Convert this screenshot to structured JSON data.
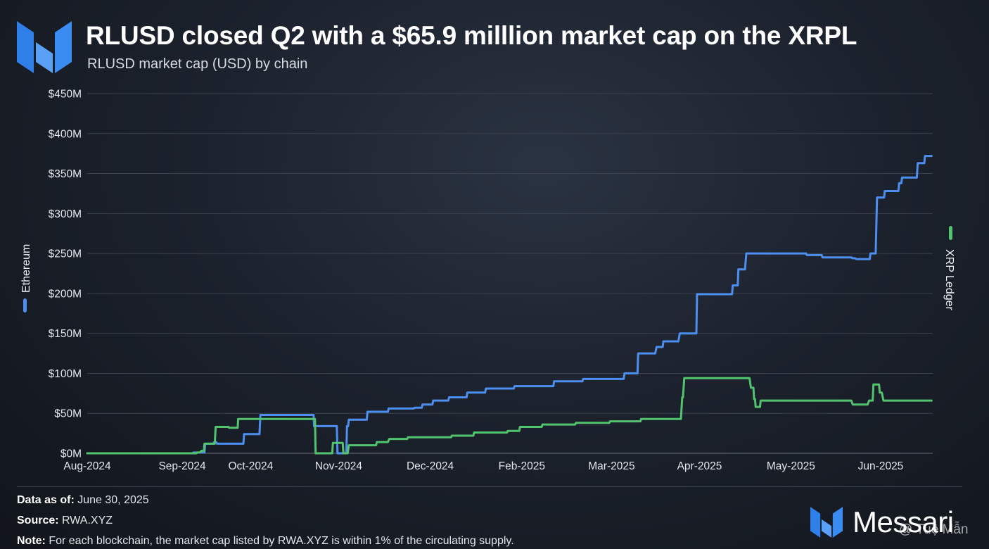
{
  "header": {
    "title": "RLUSD closed Q2 with a $65.9 milllion market cap on the XRPL",
    "subtitle": "RLUSD market cap (USD) by chain"
  },
  "footer": {
    "data_label": "Data as of:",
    "data_value": " June 30, 2025",
    "source_label": "Source:",
    "source_value": " RWA.XYZ",
    "note_label": "Note:",
    "note_value": " For each blockchain, the market cap listed by RWA.XYZ is within 1% of the circulating supply."
  },
  "brand": {
    "name": "Messari",
    "watermark": "@ Tuệ Mẫn"
  },
  "colors": {
    "ethereum": "#4d8ff0",
    "xrpl": "#52c46e",
    "logo": "#3d8ef5"
  },
  "chart_data": {
    "type": "line",
    "title": "RLUSD closed Q2 with a $65.9 milllion market cap on the XRPL",
    "subtitle": "RLUSD market cap (USD) by chain",
    "x_ticks": [
      "Aug-2024",
      "Sep-2024",
      "Oct-2024",
      "Nov-2024",
      "Dec-2024",
      "Feb-2025",
      "Mar-2025",
      "Apr-2025",
      "May-2025",
      "Jun-2025"
    ],
    "x_tick_positions": [
      0,
      41.8,
      71.9,
      110.6,
      150.9,
      191.2,
      230.7,
      269.4,
      309.6,
      349.1
    ],
    "x_range": [
      0,
      372
    ],
    "y_ticks": [
      "$0M",
      "$50M",
      "$100M",
      "$150M",
      "$200M",
      "$250M",
      "$300M",
      "$350M",
      "$400M",
      "$450M"
    ],
    "ylim": [
      0,
      450
    ],
    "y_unit": "USD millions",
    "grid": true,
    "left_axis_label": "Ethereum",
    "right_axis_label": "XRP Ledger",
    "series": [
      {
        "name": "Ethereum",
        "color": "#4d8ff0",
        "x": [
          0,
          46.4,
          46.7,
          51.6,
          51.9,
          55.3,
          55.9,
          56.8,
          57.1,
          68.7,
          69.0,
          75.8,
          76.2,
          79.9,
          80.1,
          89.3,
          89.6,
          99.6,
          99.8,
          102.1,
          102.4,
          109.8,
          110.1,
          114.0,
          114.3,
          114.8,
          115.1,
          123.0,
          123.3,
          132.3,
          132.6,
          143.7,
          144.0,
          147.2,
          147.5,
          151.9,
          152.2,
          158.9,
          159.2,
          166.9,
          167.2,
          175.1,
          175.4,
          187.7,
          188.0,
          194.9,
          195.2,
          205.1,
          205.4,
          217.9,
          218.2,
          236.0,
          236.4,
          242.1,
          242.4,
          249.9,
          250.5,
          253.2,
          253.5,
          260.1,
          260.7,
          268.0,
          268.3,
          283.7,
          284.0,
          286.2,
          286.5,
          289.4,
          290.0,
          316.3,
          316.6,
          323.2,
          323.5,
          336.3,
          336.6,
          337.8,
          338.4,
          340.4,
          341.0,
          344.3,
          344.6,
          346.9,
          347.5,
          350.6,
          350.9,
          356.9,
          357.2,
          358.2,
          358.5,
          365.0,
          365.4,
          368.3,
          368.6,
          371.5
        ],
        "values": [
          0,
          0,
          1,
          1,
          12,
          12,
          14,
          14,
          12,
          12,
          24,
          24,
          48,
          48,
          48,
          48,
          48,
          48,
          34,
          34,
          34,
          34,
          0,
          0,
          34,
          34,
          42,
          42,
          52,
          52,
          56,
          56,
          57,
          57,
          61,
          61,
          66,
          66,
          70,
          70,
          76,
          76,
          81,
          81,
          84,
          84,
          84,
          84,
          90,
          90,
          93,
          93,
          100,
          100,
          125,
          125,
          133,
          133,
          140,
          140,
          150,
          150,
          199,
          199,
          210,
          210,
          230,
          230,
          250,
          250,
          248,
          248,
          245,
          245,
          244,
          244,
          243,
          243,
          243,
          243,
          250,
          250,
          320,
          320,
          328,
          328,
          338,
          338,
          345,
          345,
          363,
          363,
          372,
          372
        ]
      },
      {
        "name": "XRP Ledger",
        "color": "#52c46e",
        "x": [
          0,
          46.1,
          46.4,
          48.0,
          48.6,
          49.6,
          50.2,
          51.3,
          51.6,
          56.1,
          56.5,
          62.1,
          62.4,
          66.2,
          66.4,
          89.7,
          90.3,
          100.2,
          100.5,
          102.8,
          103.1,
          107.8,
          108.1,
          112.4,
          112.7,
          114.6,
          115.1,
          127.1,
          127.4,
          132.3,
          132.9,
          140.8,
          141.1,
          160.1,
          160.4,
          169.9,
          170.2,
          184.7,
          185.0,
          190.1,
          190.4,
          200.0,
          200.3,
          214.7,
          215.0,
          229.7,
          230.0,
          243.4,
          243.7,
          261.2,
          261.8,
          262.1,
          262.7,
          289.5,
          290.1,
          291.4,
          292.0,
          293.1,
          293.4,
          293.8,
          294.1,
          296.0,
          296.3,
          328.1,
          328.7,
          336.2,
          336.8,
          341.4,
          341.7,
          343.4,
          344.0,
          345.6,
          345.9,
          348.4,
          348.7,
          349.6,
          350.3,
          371.5
        ],
        "values": [
          0,
          0,
          0,
          0,
          1,
          1,
          3,
          3,
          12,
          12,
          33,
          33,
          32,
          32,
          43,
          43,
          43,
          43,
          0,
          0,
          0,
          0,
          13,
          13,
          0,
          0,
          10,
          10,
          14,
          14,
          18,
          18,
          20,
          20,
          22,
          22,
          26,
          26,
          28,
          28,
          33,
          33,
          36,
          36,
          38,
          38,
          40,
          40,
          43,
          43,
          70,
          70,
          94,
          94,
          94,
          94,
          82,
          82,
          68,
          68,
          58,
          58,
          66,
          66,
          66,
          66,
          61,
          61,
          61,
          61,
          66,
          66,
          86,
          86,
          76,
          76,
          66,
          66
        ]
      }
    ]
  }
}
